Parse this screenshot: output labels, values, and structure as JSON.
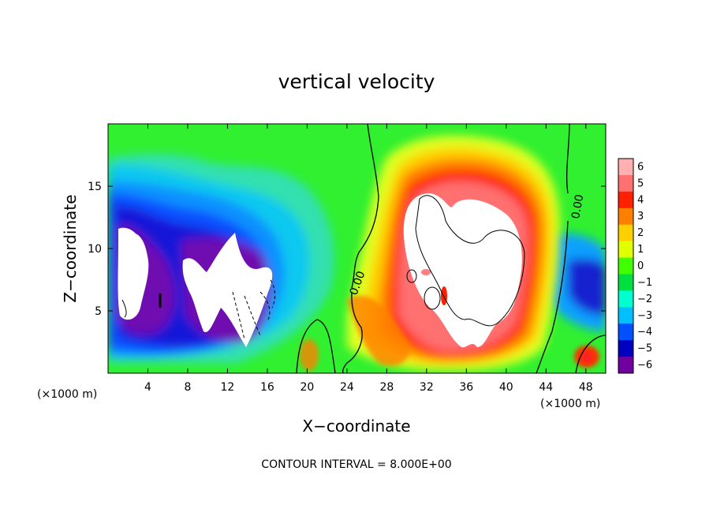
{
  "chart_data": {
    "type": "heatmap",
    "title": "vertical velocity",
    "xlabel": "X−coordinate",
    "ylabel": "Z−coordinate",
    "x_unit_label": "(×1000 m)",
    "x_unit_label_right": "(×1000 m)",
    "xlim": [
      0,
      50
    ],
    "ylim": [
      0,
      20
    ],
    "x_ticks": [
      4,
      8,
      12,
      16,
      20,
      24,
      28,
      32,
      36,
      40,
      44,
      48
    ],
    "y_ticks": [
      5,
      10,
      15
    ],
    "colorbar": {
      "labels": [
        "6",
        "5",
        "4",
        "3",
        "2",
        "1",
        "0",
        "−1",
        "−2",
        "−3",
        "−4",
        "−5",
        "−6"
      ],
      "values": [
        6,
        5,
        4,
        3,
        2,
        1,
        0,
        -1,
        -2,
        -3,
        -4,
        -5,
        -6
      ],
      "colors": [
        "#ffb0b0",
        "#ff7070",
        "#ff2000",
        "#ff8000",
        "#ffd000",
        "#e0ff00",
        "#40ff00",
        "#00e040",
        "#00ffd0",
        "#00c0ff",
        "#0050ff",
        "#0000c0",
        "#7000a0"
      ]
    },
    "contour_labels": [
      "0.00",
      "0.00"
    ],
    "annotation": "CONTOUR INTERVAL = 8.000E+00",
    "grid": false
  },
  "colors": {
    "background_field": "#20ff20",
    "saturated_high": "#ffffff",
    "saturated_low": "#ffffff"
  }
}
